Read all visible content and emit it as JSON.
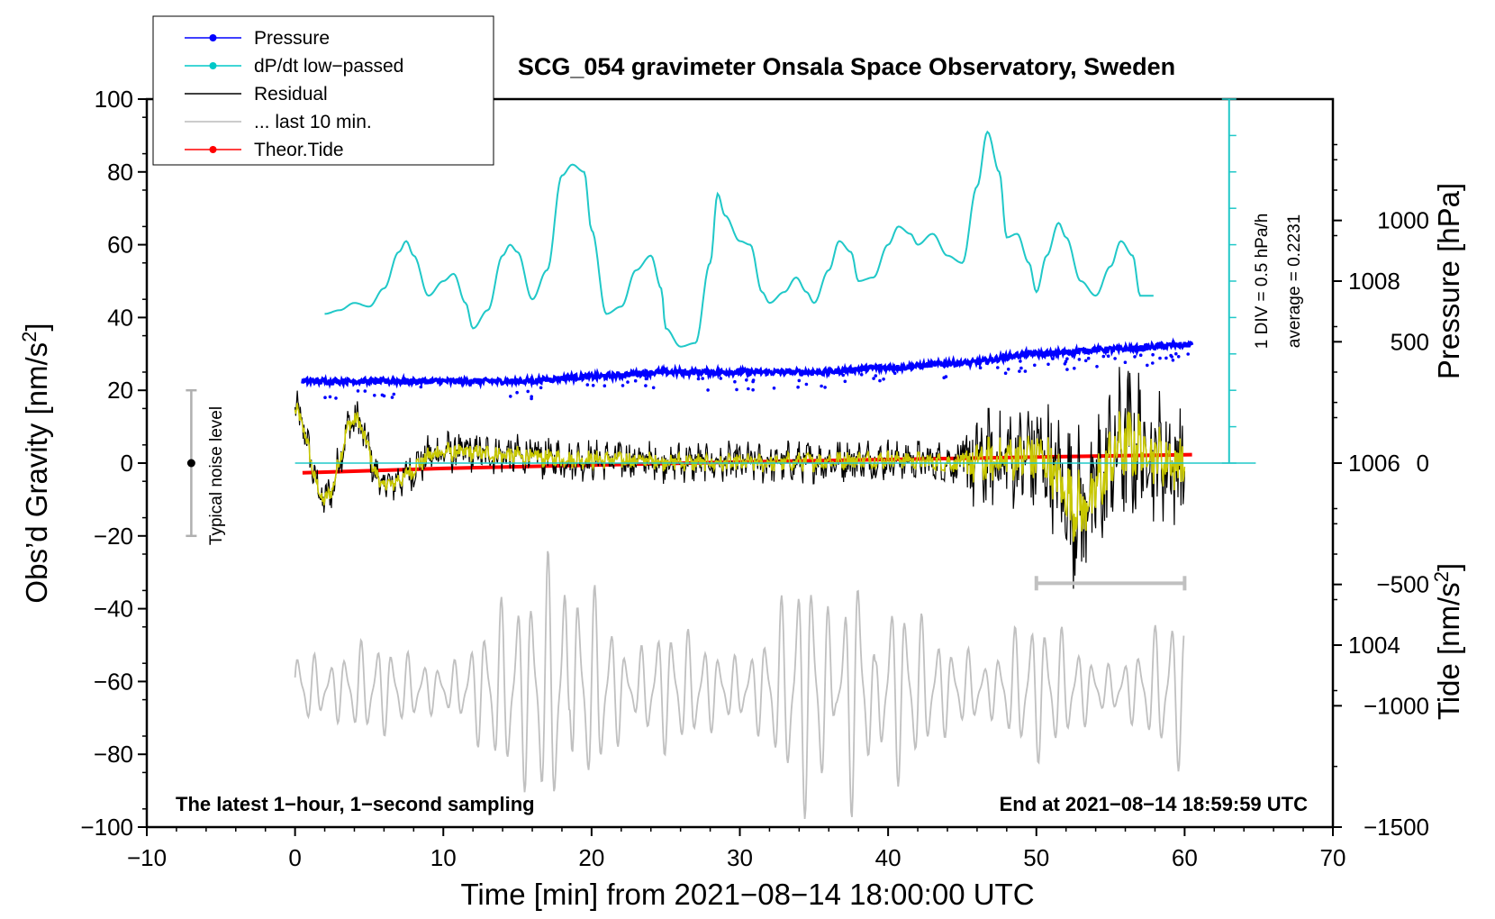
{
  "chart_data": {
    "type": "line",
    "title": "SCG_054 gravimeter Onsala Space Observatory, Sweden",
    "xlabel": "Time [min] from 2021−08−14 18:00:00 UTC",
    "ylabel_left": "Obs’d Gravity [nm/s",
    "ylabel_left_sup": "2",
    "ylabel_left_end": "]",
    "ylabel_right_pressure": "Pressure [hPa]",
    "ylabel_right_tide": "Tide [nm/s",
    "ylabel_right_tide_sup": "2",
    "ylabel_right_tide_end": "]",
    "xlim": [
      -10,
      70
    ],
    "ylim": [
      -100,
      100
    ],
    "pressure_ylim": [
      1002,
      1010
    ],
    "tide_ylim": [
      -1500,
      1500
    ],
    "x_ticks": [
      "−10",
      "0",
      "10",
      "20",
      "30",
      "40",
      "50",
      "60",
      "70"
    ],
    "x_tick_values": [
      -10,
      0,
      10,
      20,
      30,
      40,
      50,
      60,
      70
    ],
    "y_ticks": [
      "100",
      "80",
      "60",
      "40",
      "20",
      "0",
      "−20",
      "−40",
      "−60",
      "−80",
      "−100"
    ],
    "y_tick_values": [
      100,
      80,
      60,
      40,
      20,
      0,
      -20,
      -40,
      -60,
      -80,
      -100
    ],
    "pressure_ticks": [
      "1008",
      "1006",
      "1004"
    ],
    "pressure_tick_values": [
      1008,
      1006,
      1004
    ],
    "tide_ticks": [
      "1000",
      "500",
      "0",
      "−500",
      "−1000",
      "−1500"
    ],
    "tide_tick_values": [
      1000,
      500,
      0,
      -500,
      -1000,
      -1500
    ],
    "legend": [
      {
        "label": "Pressure",
        "color": "#0000ff",
        "marker": true
      },
      {
        "label": "dP/dt low−passed",
        "color": "#00c8c8",
        "marker": true
      },
      {
        "label": "Residual",
        "color": "#000000",
        "marker": false
      },
      {
        "label": "... last 10 min.",
        "color": "#bbbbbb",
        "marker": false
      },
      {
        "label": "Theor.Tide",
        "color": "#ff0000",
        "marker": true
      }
    ],
    "colors": {
      "pressure": "#0000ff",
      "dpdt": "#20c8c8",
      "residual": "#000000",
      "residual_smooth": "#c8c800",
      "last10": "#c0c0c0",
      "tide": "#ff0000",
      "noise": "#b0b0b0"
    },
    "series": [
      {
        "name": "Pressure",
        "unit": "hPa",
        "x": [
          0.5,
          5,
          10,
          15,
          20,
          25,
          30,
          35,
          40,
          45,
          50,
          55,
          60.5
        ],
        "values": [
          1006.9,
          1006.9,
          1006.9,
          1006.9,
          1006.95,
          1007.0,
          1007.0,
          1007.0,
          1007.05,
          1007.1,
          1007.2,
          1007.25,
          1007.3
        ]
      },
      {
        "name": "dP/dt low−passed",
        "unit": "gravity-axis scale, 1 DIV = 0.5 hPa/h, zero at 50",
        "x": [
          2,
          3,
          4,
          5,
          6,
          7,
          7.5,
          8,
          9,
          10,
          10.7,
          11.5,
          12,
          13,
          14,
          14.5,
          15,
          16,
          17,
          18,
          18.7,
          19.5,
          20,
          21,
          22,
          23,
          24,
          24.7,
          25,
          26,
          27,
          28,
          28.5,
          29,
          30,
          30.7,
          31.5,
          32,
          33,
          33.8,
          34.5,
          35,
          36,
          36.7,
          37.5,
          38,
          39,
          40,
          40.7,
          41.5,
          42,
          43,
          44,
          45,
          46,
          46.7,
          47.5,
          48,
          48.7,
          49.5,
          50,
          50.7,
          51.5,
          52,
          53,
          54,
          55,
          55.7,
          56.5,
          57,
          58
        ],
        "values": [
          41,
          42,
          44,
          43,
          48,
          58,
          61,
          57,
          46,
          50,
          52,
          44,
          37,
          42,
          57,
          60,
          58,
          45,
          53,
          79,
          82,
          80,
          64,
          41,
          43,
          53,
          57,
          48,
          37,
          32,
          33,
          55,
          74,
          68,
          61,
          60,
          47,
          44,
          47,
          51,
          47,
          44,
          53,
          61,
          58,
          50,
          51,
          60,
          65,
          63,
          60,
          63,
          57,
          55,
          76,
          91,
          80,
          62,
          63,
          55,
          47,
          57,
          66,
          62,
          50,
          46,
          54,
          61,
          57,
          46,
          46
        ]
      },
      {
        "name": "Residual",
        "unit": "nm/s2",
        "x": [
          0,
          2,
          4,
          6,
          10,
          20,
          30,
          40,
          45,
          50,
          53,
          56,
          60
        ],
        "values": [
          14,
          -10,
          12,
          -6,
          3,
          1,
          0,
          1,
          0,
          2,
          -12,
          5,
          0
        ]
      },
      {
        "name": "... last 10 min.",
        "unit": "nm/s2 (scaled)",
        "x": [
          0,
          5,
          10,
          15,
          18,
          19,
          25,
          30,
          35,
          38,
          40,
          45,
          50,
          55,
          60
        ],
        "values": [
          -58,
          -68,
          -62,
          -80,
          -92,
          -40,
          -72,
          -64,
          -88,
          -34,
          -80,
          -66,
          -50,
          -62,
          -48
        ]
      },
      {
        "name": "Theor.Tide",
        "unit": "nm/s2",
        "x": [
          0.5,
          10,
          20,
          30,
          40,
          50,
          60.5
        ],
        "values": [
          -40,
          -22,
          -8,
          5,
          15,
          25,
          35
        ]
      }
    ],
    "pressure_reference_line": "1006",
    "dpdt_scale_bar": {
      "label": "1 DIV = 0.5 hPa/h",
      "average_label": "average = 0.2231"
    },
    "noise_bar": {
      "label": "Typical noise level",
      "range": [
        -20,
        20
      ],
      "center": 0
    },
    "last10_bar": {
      "x": [
        50,
        60
      ],
      "y": -33
    },
    "bottom_left_text": "The latest 1−hour, 1−second sampling",
    "bottom_right_text": "End at 2021−08−14 18:59:59 UTC"
  }
}
